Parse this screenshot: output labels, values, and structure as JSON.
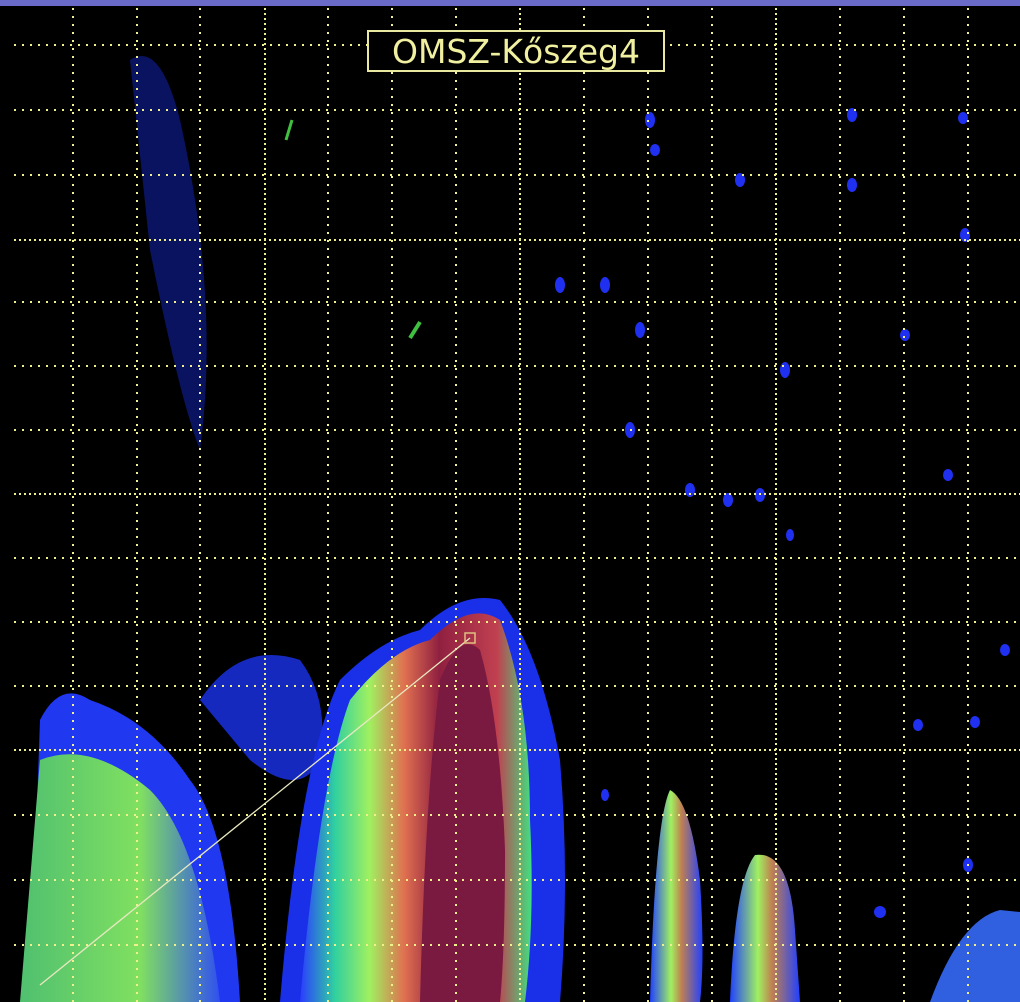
{
  "radar": {
    "label": "OMSZ-Kőszeg4"
  }
}
